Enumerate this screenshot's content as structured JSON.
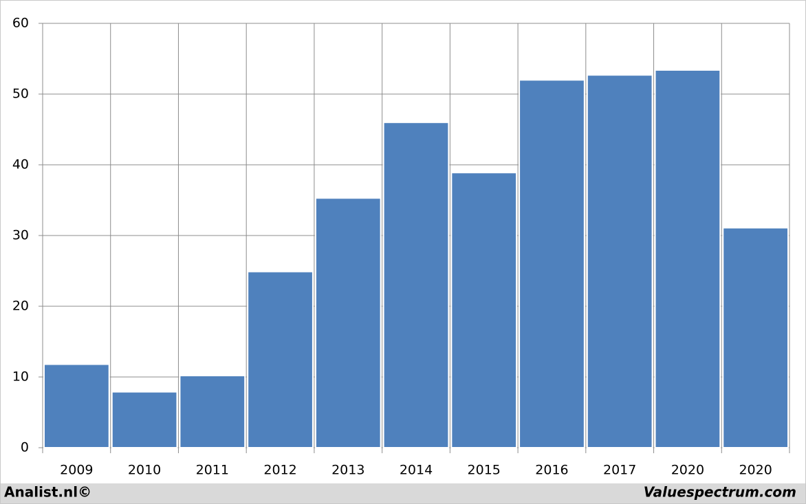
{
  "chart_data": {
    "type": "bar",
    "categories": [
      "2009",
      "2010",
      "2011",
      "2012",
      "2013",
      "2014",
      "2015",
      "2016",
      "2017",
      "2020",
      "2020"
    ],
    "values": [
      11.8,
      7.9,
      10.2,
      24.9,
      35.3,
      46,
      38.9,
      52,
      52.7,
      53.4,
      31.1
    ],
    "color": "#4f81bd",
    "ylim": [
      0,
      60
    ],
    "yticks": [
      0,
      10,
      20,
      30,
      40,
      50,
      60
    ],
    "grid": true,
    "credits": [
      "Analist.nl©",
      "Valuespectrum.com"
    ]
  }
}
